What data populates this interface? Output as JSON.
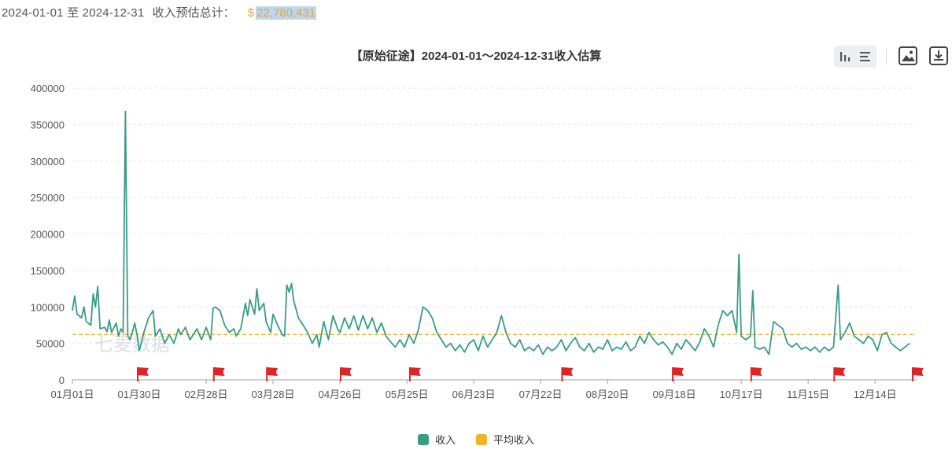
{
  "summary": {
    "range": "2024-01-01 至 2024-12-31",
    "label": "收入预估总计：",
    "currency": "$",
    "total": "22,780,431"
  },
  "toolbar": {
    "tools": [
      "bar-chart-icon",
      "list-icon",
      "image-icon",
      "download-icon"
    ]
  },
  "legend": {
    "income": "收入",
    "avg": "平均收入"
  },
  "watermark": "七麦数据",
  "colors": {
    "income": "#3a9b86",
    "avg": "#f0b429",
    "marker": "#e02424",
    "grid": "#e6e9ee"
  },
  "chart_data": {
    "type": "line",
    "title": "【原始征途】2024-01-01～2024-12-31收入估算",
    "xlabel": "",
    "ylabel": "",
    "ylim": [
      0,
      400000
    ],
    "yticks": [
      0,
      50000,
      100000,
      150000,
      200000,
      250000,
      300000,
      350000,
      400000
    ],
    "x_range": [
      "2024-01-01",
      "2024-12-31"
    ],
    "xtick_labels": [
      "01月01日",
      "01月30日",
      "02月28日",
      "03月28日",
      "04月26日",
      "05月25日",
      "06月23日",
      "07月22日",
      "08月20日",
      "09月18日",
      "10月17日",
      "11月15日",
      "12月14日"
    ],
    "grid": true,
    "legend_position": "bottom",
    "series": [
      {
        "name": "收入",
        "points": [
          [
            "01-01",
            95000
          ],
          [
            "01-02",
            115000
          ],
          [
            "01-03",
            90000
          ],
          [
            "01-05",
            85000
          ],
          [
            "01-06",
            100000
          ],
          [
            "01-07",
            80000
          ],
          [
            "01-09",
            75000
          ],
          [
            "01-10",
            118000
          ],
          [
            "01-11",
            100000
          ],
          [
            "01-12",
            128000
          ],
          [
            "01-13",
            70000
          ],
          [
            "01-15",
            72000
          ],
          [
            "01-16",
            66000
          ],
          [
            "01-17",
            82000
          ],
          [
            "01-18",
            65000
          ],
          [
            "01-20",
            78000
          ],
          [
            "01-21",
            60000
          ],
          [
            "01-22",
            70000
          ],
          [
            "01-23",
            65000
          ],
          [
            "01-24",
            368000
          ],
          [
            "01-25",
            60000
          ],
          [
            "01-26",
            55000
          ],
          [
            "01-27",
            65000
          ],
          [
            "01-28",
            78000
          ],
          [
            "01-29",
            62000
          ],
          [
            "01-30",
            40000
          ],
          [
            "02-01",
            65000
          ],
          [
            "02-03",
            85000
          ],
          [
            "02-05",
            95000
          ],
          [
            "02-06",
            60000
          ],
          [
            "02-08",
            70000
          ],
          [
            "02-10",
            50000
          ],
          [
            "02-12",
            62000
          ],
          [
            "02-14",
            50000
          ],
          [
            "02-16",
            70000
          ],
          [
            "02-17",
            62000
          ],
          [
            "02-19",
            72000
          ],
          [
            "02-21",
            55000
          ],
          [
            "02-23",
            65000
          ],
          [
            "02-24",
            70000
          ],
          [
            "02-26",
            55000
          ],
          [
            "02-28",
            72000
          ],
          [
            "03-01",
            55000
          ],
          [
            "03-02",
            98000
          ],
          [
            "03-03",
            100000
          ],
          [
            "03-05",
            95000
          ],
          [
            "03-07",
            75000
          ],
          [
            "03-09",
            65000
          ],
          [
            "03-11",
            70000
          ],
          [
            "03-12",
            60000
          ],
          [
            "03-14",
            70000
          ],
          [
            "03-16",
            105000
          ],
          [
            "03-17",
            88000
          ],
          [
            "03-18",
            110000
          ],
          [
            "03-20",
            90000
          ],
          [
            "03-21",
            125000
          ],
          [
            "03-22",
            95000
          ],
          [
            "03-24",
            105000
          ],
          [
            "03-25",
            80000
          ],
          [
            "03-27",
            65000
          ],
          [
            "03-28",
            90000
          ],
          [
            "03-30",
            75000
          ],
          [
            "04-01",
            62000
          ],
          [
            "04-02",
            60000
          ],
          [
            "04-03",
            130000
          ],
          [
            "04-04",
            120000
          ],
          [
            "04-05",
            132000
          ],
          [
            "04-06",
            108000
          ],
          [
            "04-08",
            85000
          ],
          [
            "04-10",
            75000
          ],
          [
            "04-12",
            65000
          ],
          [
            "04-14",
            50000
          ],
          [
            "04-16",
            62000
          ],
          [
            "04-17",
            45000
          ],
          [
            "04-19",
            80000
          ],
          [
            "04-21",
            55000
          ],
          [
            "04-23",
            88000
          ],
          [
            "04-25",
            70000
          ],
          [
            "04-26",
            65000
          ],
          [
            "04-28",
            85000
          ],
          [
            "04-30",
            70000
          ],
          [
            "05-02",
            88000
          ],
          [
            "05-04",
            68000
          ],
          [
            "05-06",
            88000
          ],
          [
            "05-08",
            70000
          ],
          [
            "05-10",
            85000
          ],
          [
            "05-12",
            65000
          ],
          [
            "05-14",
            78000
          ],
          [
            "05-16",
            60000
          ],
          [
            "05-18",
            52000
          ],
          [
            "05-20",
            45000
          ],
          [
            "05-22",
            55000
          ],
          [
            "05-24",
            45000
          ],
          [
            "05-26",
            62000
          ],
          [
            "05-28",
            50000
          ],
          [
            "05-30",
            68000
          ],
          [
            "06-01",
            100000
          ],
          [
            "06-03",
            95000
          ],
          [
            "06-05",
            85000
          ],
          [
            "06-07",
            65000
          ],
          [
            "06-09",
            55000
          ],
          [
            "06-11",
            45000
          ],
          [
            "06-13",
            50000
          ],
          [
            "06-15",
            40000
          ],
          [
            "06-17",
            48000
          ],
          [
            "06-19",
            38000
          ],
          [
            "06-21",
            50000
          ],
          [
            "06-23",
            55000
          ],
          [
            "06-25",
            40000
          ],
          [
            "06-27",
            60000
          ],
          [
            "06-29",
            45000
          ],
          [
            "07-01",
            55000
          ],
          [
            "07-03",
            65000
          ],
          [
            "07-05",
            88000
          ],
          [
            "07-07",
            65000
          ],
          [
            "07-09",
            50000
          ],
          [
            "07-11",
            45000
          ],
          [
            "07-13",
            55000
          ],
          [
            "07-15",
            40000
          ],
          [
            "07-17",
            45000
          ],
          [
            "07-19",
            40000
          ],
          [
            "07-21",
            48000
          ],
          [
            "07-23",
            35000
          ],
          [
            "07-25",
            45000
          ],
          [
            "07-27",
            40000
          ],
          [
            "07-29",
            45000
          ],
          [
            "07-31",
            55000
          ],
          [
            "08-02",
            40000
          ],
          [
            "08-04",
            50000
          ],
          [
            "08-06",
            58000
          ],
          [
            "08-08",
            45000
          ],
          [
            "08-10",
            40000
          ],
          [
            "08-12",
            50000
          ],
          [
            "08-14",
            38000
          ],
          [
            "08-16",
            45000
          ],
          [
            "08-18",
            42000
          ],
          [
            "08-20",
            55000
          ],
          [
            "08-22",
            40000
          ],
          [
            "08-24",
            45000
          ],
          [
            "08-26",
            42000
          ],
          [
            "08-28",
            52000
          ],
          [
            "08-30",
            40000
          ],
          [
            "09-01",
            45000
          ],
          [
            "09-03",
            60000
          ],
          [
            "09-05",
            50000
          ],
          [
            "09-07",
            65000
          ],
          [
            "09-09",
            55000
          ],
          [
            "09-11",
            48000
          ],
          [
            "09-13",
            52000
          ],
          [
            "09-15",
            45000
          ],
          [
            "09-17",
            35000
          ],
          [
            "09-19",
            50000
          ],
          [
            "09-21",
            42000
          ],
          [
            "09-23",
            55000
          ],
          [
            "09-25",
            48000
          ],
          [
            "09-27",
            40000
          ],
          [
            "09-29",
            52000
          ],
          [
            "10-01",
            70000
          ],
          [
            "10-03",
            60000
          ],
          [
            "10-05",
            45000
          ],
          [
            "10-07",
            75000
          ],
          [
            "10-09",
            95000
          ],
          [
            "10-11",
            88000
          ],
          [
            "10-13",
            95000
          ],
          [
            "10-15",
            65000
          ],
          [
            "10-16",
            172000
          ],
          [
            "10-17",
            60000
          ],
          [
            "10-19",
            55000
          ],
          [
            "10-21",
            60000
          ],
          [
            "10-22",
            122000
          ],
          [
            "10-23",
            45000
          ],
          [
            "10-25",
            42000
          ],
          [
            "10-27",
            45000
          ],
          [
            "10-29",
            35000
          ],
          [
            "10-31",
            80000
          ],
          [
            "11-02",
            75000
          ],
          [
            "11-04",
            70000
          ],
          [
            "11-06",
            50000
          ],
          [
            "11-08",
            45000
          ],
          [
            "11-10",
            50000
          ],
          [
            "11-12",
            42000
          ],
          [
            "11-14",
            45000
          ],
          [
            "11-16",
            40000
          ],
          [
            "11-18",
            45000
          ],
          [
            "11-20",
            38000
          ],
          [
            "11-22",
            45000
          ],
          [
            "11-24",
            40000
          ],
          [
            "11-26",
            45000
          ],
          [
            "11-28",
            130000
          ],
          [
            "11-29",
            55000
          ],
          [
            "12-01",
            65000
          ],
          [
            "12-03",
            78000
          ],
          [
            "12-05",
            60000
          ],
          [
            "12-07",
            55000
          ],
          [
            "12-09",
            50000
          ],
          [
            "12-11",
            60000
          ],
          [
            "12-13",
            55000
          ],
          [
            "12-15",
            40000
          ],
          [
            "12-17",
            62000
          ],
          [
            "12-19",
            65000
          ],
          [
            "12-21",
            50000
          ],
          [
            "12-23",
            45000
          ],
          [
            "12-25",
            40000
          ],
          [
            "12-27",
            45000
          ],
          [
            "12-29",
            50000
          ]
        ]
      },
      {
        "name": "平均收入",
        "value": 62241
      }
    ],
    "event_markers": [
      "01-30",
      "03-03",
      "03-26",
      "04-27",
      "05-27",
      "08-01",
      "09-18",
      "10-22",
      "11-27",
      "12-31"
    ]
  }
}
